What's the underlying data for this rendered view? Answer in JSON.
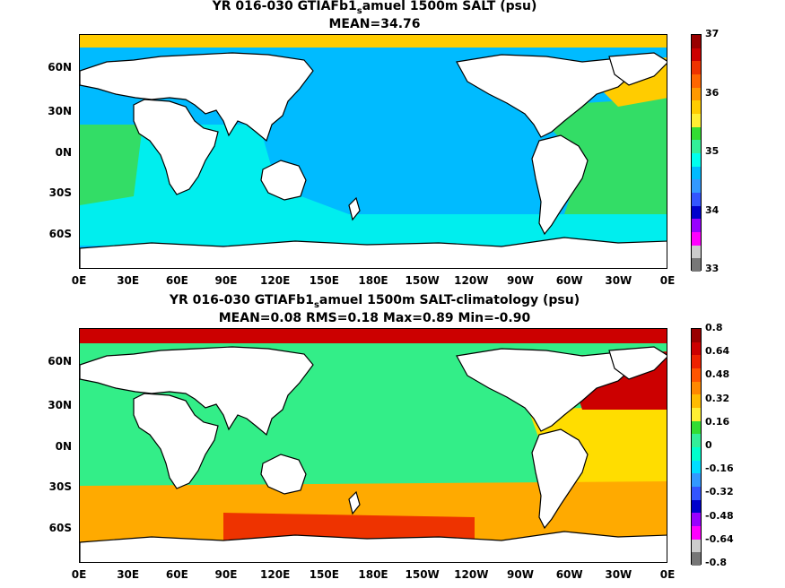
{
  "panel1": {
    "title_pre": "YR 016-030 GTIAFb1",
    "title_sub": "s",
    "title_post": "amuel 1500m SALT (psu)",
    "stats": "MEAN=34.76",
    "lat_labels": [
      "60N",
      "30N",
      "0N",
      "30S",
      "60S"
    ],
    "lon_labels": [
      "0E",
      "30E",
      "60E",
      "90E",
      "120E",
      "150E",
      "180E",
      "150W",
      "120W",
      "90W",
      "60W",
      "30W",
      "0E"
    ],
    "colorbar": {
      "labels": [
        "37",
        "36",
        "35",
        "34",
        "33"
      ],
      "colors": [
        "#990000",
        "#cc0000",
        "#ee3300",
        "#ff6600",
        "#ff9900",
        "#ffcc00",
        "#ffee33",
        "#33dd33",
        "#33ee99",
        "#00ffee",
        "#00bbff",
        "#3399ff",
        "#3355ff",
        "#0000cc",
        "#9900ff",
        "#ff00ff",
        "#cccccc",
        "#777777"
      ]
    },
    "region_colors": {
      "ocean": "#00bbff",
      "indian": "#00eeee",
      "atlantic": "#33dd66",
      "southern": "#00eeee",
      "north_atl": "#ffcc00",
      "arctic": "#ffcc00"
    }
  },
  "panel2": {
    "title_pre": "YR 016-030 GTIAFb1",
    "title_sub": "s",
    "title_post": "amuel 1500m SALT-climatology (psu)",
    "stats": "MEAN=0.08   RMS=0.18   Max=0.89   Min=-0.90",
    "lat_labels": [
      "60N",
      "30N",
      "0N",
      "30S",
      "60S"
    ],
    "lon_labels": [
      "0E",
      "30E",
      "60E",
      "90E",
      "120E",
      "150E",
      "180E",
      "150W",
      "120W",
      "90W",
      "60W",
      "30W",
      "0E"
    ],
    "colorbar": {
      "labels": [
        "0.8",
        "0.64",
        "0.48",
        "0.32",
        "0.16",
        "0",
        "-0.16",
        "-0.32",
        "-0.48",
        "-0.64",
        "-0.8"
      ],
      "colors": [
        "#990000",
        "#cc0000",
        "#ee2200",
        "#ff5500",
        "#ff8800",
        "#ffbb00",
        "#ffee33",
        "#33dd33",
        "#33ee99",
        "#00ffcc",
        "#00ddff",
        "#3399ff",
        "#3355ff",
        "#0000cc",
        "#9900ff",
        "#ff00ff",
        "#cccccc",
        "#777777"
      ]
    },
    "region_colors": {
      "ocean": "#33ee88",
      "southern": "#ffaa00",
      "south_red": "#ee3300",
      "north_atl": "#cc0000",
      "arctic": "#cc0000",
      "atl_band": "#ffdd00"
    }
  }
}
